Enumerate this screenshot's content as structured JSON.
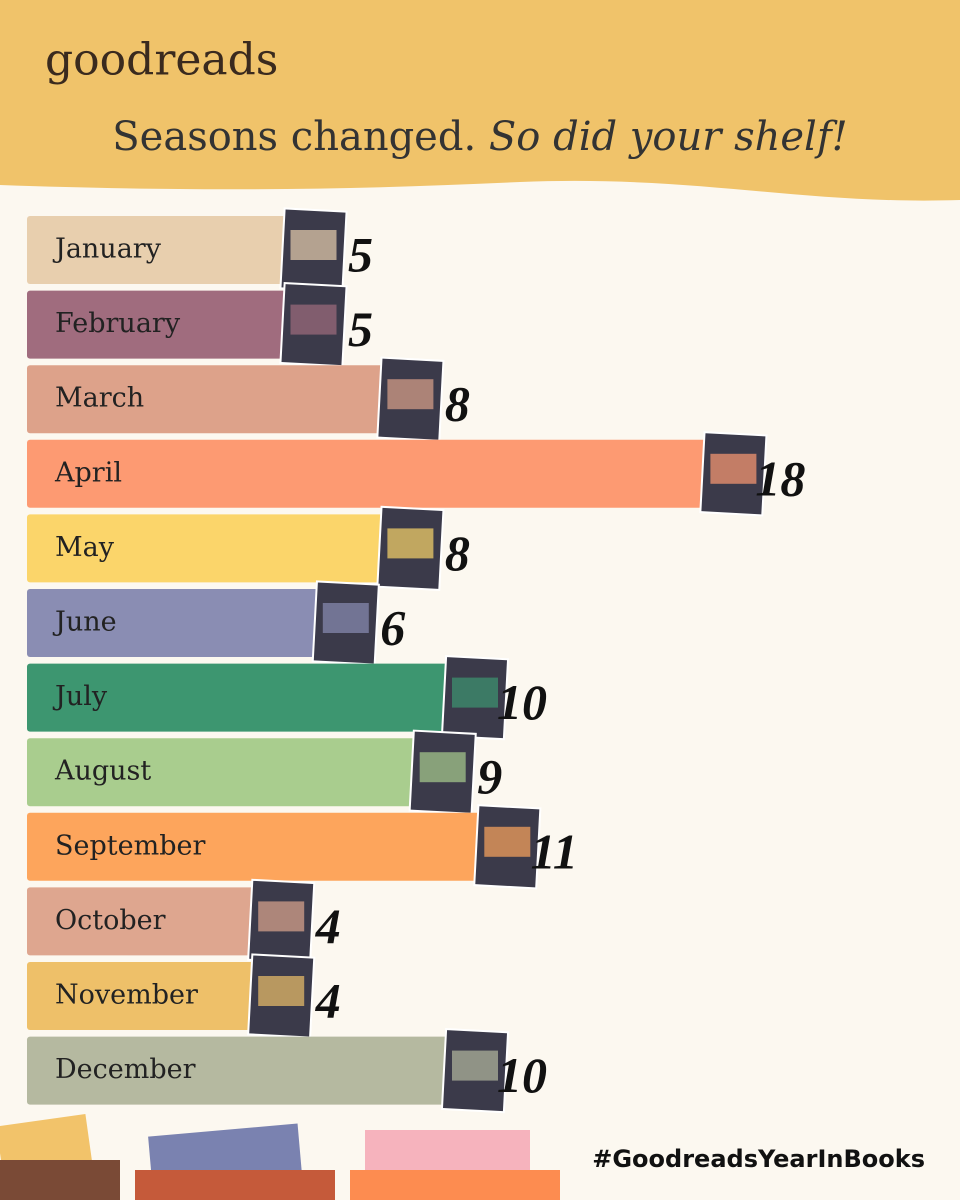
{
  "brand": "goodreads",
  "hashtag": "#GoodreadsYearInBooks",
  "chart_data": {
    "type": "bar",
    "title": "Seasons changed.",
    "subtitle": "So did your shelf!",
    "categories": [
      "January",
      "February",
      "March",
      "April",
      "May",
      "June",
      "July",
      "August",
      "September",
      "October",
      "November",
      "December"
    ],
    "values": [
      5,
      5,
      8,
      18,
      8,
      6,
      10,
      9,
      11,
      4,
      4,
      10
    ],
    "colors": [
      "#e8cfae",
      "#a06c7e",
      "#dda28a",
      "#fd9a72",
      "#fbd56a",
      "#8a8db3",
      "#3d9670",
      "#a9cd8e",
      "#fda55c",
      "#dea68f",
      "#eec069",
      "#b5b9a0"
    ]
  }
}
